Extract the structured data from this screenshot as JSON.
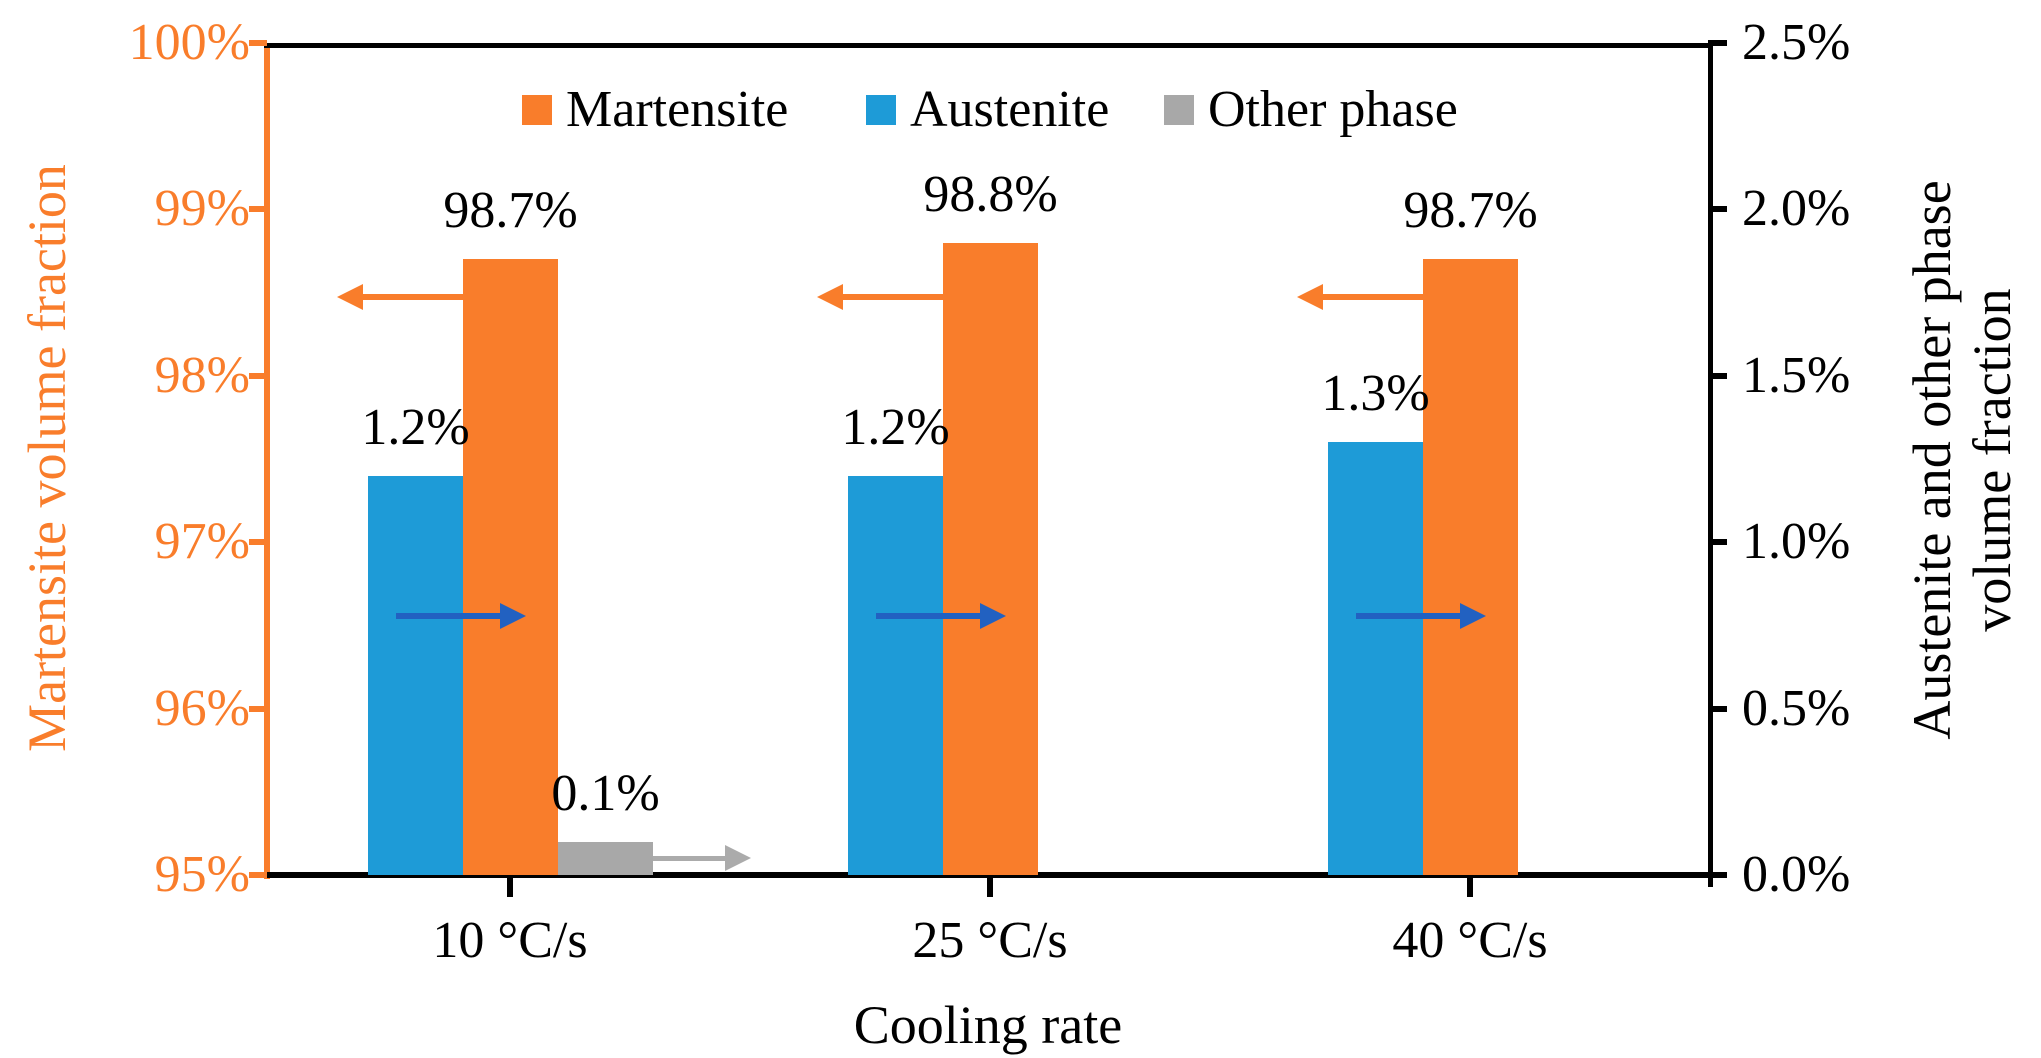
{
  "figure": {
    "legend": {
      "items": [
        {
          "label": "Martensite",
          "color": "#F97D2B"
        },
        {
          "label": "Austenite",
          "color": "#1E9BD7"
        },
        {
          "label": "Other phase",
          "color": "#A8A8A8"
        }
      ]
    }
  },
  "chart_data": {
    "type": "bar",
    "title": "",
    "categories": [
      "10 °C/s",
      "25 °C/s",
      "40 °C/s"
    ],
    "xlabel": "Cooling rate",
    "grid": false,
    "legend_position": "top-inside",
    "left_axis": {
      "title": "Martensite volume fraction",
      "color": "#F97D2B",
      "min": 95,
      "max": 100,
      "ticks": [
        {
          "value": 100,
          "label": "100%"
        },
        {
          "value": 99,
          "label": "99%"
        },
        {
          "value": 98,
          "label": "98%"
        },
        {
          "value": 97,
          "label": "97%"
        },
        {
          "value": 96,
          "label": "96%"
        },
        {
          "value": 95,
          "label": "95%"
        }
      ]
    },
    "right_axis": {
      "title_line1": "Austenite and other phase",
      "title_line2": "volume fraction",
      "color": "#000000",
      "min": 0,
      "max": 2.5,
      "ticks": [
        {
          "value": 2.5,
          "label": "2.5%"
        },
        {
          "value": 2.0,
          "label": "2.0%"
        },
        {
          "value": 1.5,
          "label": "1.5%"
        },
        {
          "value": 1.0,
          "label": "1.0%"
        },
        {
          "value": 0.5,
          "label": "0.5%"
        },
        {
          "value": 0.0,
          "label": "0.0%"
        }
      ]
    },
    "series": [
      {
        "name": "Martensite",
        "axis": "left",
        "color": "#F97D2B",
        "values": [
          98.7,
          98.8,
          98.7
        ],
        "labels": [
          "98.7%",
          "98.8%",
          "98.7%"
        ]
      },
      {
        "name": "Austenite",
        "axis": "right",
        "color": "#1E9BD7",
        "values": [
          1.2,
          1.2,
          1.3
        ],
        "labels": [
          "1.2%",
          "1.2%",
          "1.3%"
        ]
      },
      {
        "name": "Other phase",
        "axis": "right",
        "color": "#A8A8A8",
        "values": [
          0.1,
          null,
          null
        ],
        "labels": [
          "0.1%",
          "",
          ""
        ]
      }
    ],
    "annotations": {
      "arrows": [
        {
          "series": "Martensite",
          "direction": "left",
          "color": "#F97D2B",
          "groups": [
            0,
            1,
            2
          ]
        },
        {
          "series": "Austenite",
          "direction": "right",
          "color": "#2261C1",
          "groups": [
            0,
            1,
            2
          ]
        },
        {
          "series": "Other phase",
          "direction": "right",
          "color": "#ABABAB",
          "groups": [
            0
          ]
        }
      ]
    }
  }
}
